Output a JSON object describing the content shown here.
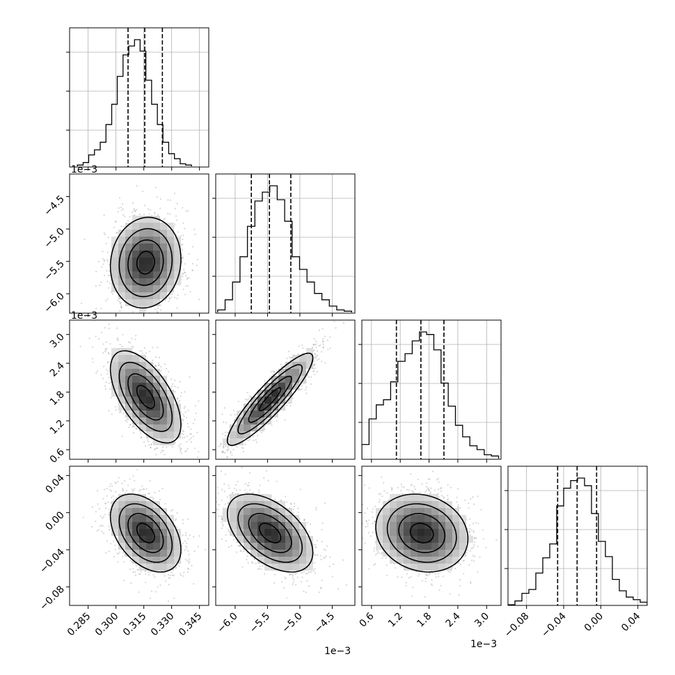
{
  "figure": {
    "type": "corner-plot"
  },
  "chart_data": {
    "type": "corner",
    "parameters": [
      {
        "index": 0,
        "range": [
          0.275,
          0.35
        ],
        "ticks": [
          0.285,
          0.3,
          0.315,
          0.33,
          0.345
        ],
        "tick_labels": [
          "0.285",
          "0.300",
          "0.315",
          "0.330",
          "0.345"
        ],
        "offset_text": "",
        "quantiles": [
          0.3065,
          0.3155,
          0.325
        ],
        "histogram": {
          "bin_edges": [
            0.2792,
            0.2823,
            0.2853,
            0.2884,
            0.2915,
            0.2946,
            0.2977,
            0.3007,
            0.3038,
            0.3069,
            0.31,
            0.313,
            0.3161,
            0.3192,
            0.3223,
            0.3253,
            0.3284,
            0.3315,
            0.3346,
            0.3376,
            0.3407
          ],
          "counts": [
            0.01,
            0.03,
            0.09,
            0.13,
            0.19,
            0.33,
            0.49,
            0.71,
            0.88,
            0.95,
            1.0,
            0.91,
            0.68,
            0.49,
            0.33,
            0.19,
            0.1,
            0.06,
            0.02,
            0.01
          ]
        }
      },
      {
        "index": 1,
        "range": [
          -6.3,
          -4.15
        ],
        "ticks": [
          -6.0,
          -5.5,
          -5.0,
          -4.5
        ],
        "tick_labels": [
          "−6.0",
          "−5.5",
          "−5.0",
          "−4.5"
        ],
        "offset_text": "1e−3",
        "quantiles": [
          -5.75,
          -5.47,
          -5.14
        ],
        "histogram": {
          "bin_edges": [
            -6.27,
            -6.155,
            -6.04,
            -5.925,
            -5.81,
            -5.695,
            -5.58,
            -5.465,
            -5.35,
            -5.235,
            -5.12,
            -5.005,
            -4.89,
            -4.775,
            -4.66,
            -4.545,
            -4.43,
            -4.315,
            -4.2
          ],
          "counts": [
            0.02,
            0.1,
            0.24,
            0.44,
            0.68,
            0.88,
            0.95,
            1.0,
            0.89,
            0.72,
            0.44,
            0.34,
            0.24,
            0.15,
            0.1,
            0.05,
            0.02,
            0.01
          ]
        }
      },
      {
        "index": 2,
        "range": [
          0.4,
          3.3
        ],
        "ticks": [
          0.6,
          1.2,
          1.8,
          2.4,
          3.0
        ],
        "tick_labels": [
          "0.6",
          "1.2",
          "1.8",
          "2.4",
          "3.0"
        ],
        "offset_text": "1e−3",
        "quantiles": [
          1.12,
          1.63,
          2.11
        ],
        "histogram": {
          "bin_edges": [
            0.4,
            0.55,
            0.7,
            0.85,
            1.0,
            1.15,
            1.3,
            1.45,
            1.6,
            1.75,
            1.9,
            2.05,
            2.2,
            2.35,
            2.5,
            2.65,
            2.8,
            2.95,
            3.1,
            3.25
          ],
          "counts": [
            0.11,
            0.31,
            0.42,
            0.46,
            0.6,
            0.76,
            0.82,
            0.92,
            0.99,
            0.97,
            0.85,
            0.59,
            0.41,
            0.26,
            0.17,
            0.1,
            0.07,
            0.03,
            0.02
          ]
        }
      },
      {
        "index": 3,
        "range": [
          -0.1,
          0.05
        ],
        "ticks": [
          -0.08,
          -0.04,
          0.0,
          0.04
        ],
        "tick_labels": [
          "−0.08",
          "−0.04",
          "0.00",
          "0.04"
        ],
        "offset_text": "",
        "quantiles": [
          -0.0465,
          -0.0255,
          -0.0045
        ],
        "histogram": {
          "bin_edges": [
            -0.1,
            -0.0925,
            -0.085,
            -0.0775,
            -0.07,
            -0.0625,
            -0.055,
            -0.0475,
            -0.04,
            -0.0325,
            -0.025,
            -0.0175,
            -0.01,
            -0.0025,
            0.005,
            0.0125,
            0.02,
            0.0275,
            0.035,
            0.0425,
            0.05
          ],
          "counts": [
            0.0,
            0.03,
            0.09,
            0.12,
            0.25,
            0.37,
            0.48,
            0.78,
            0.92,
            0.98,
            1.0,
            0.94,
            0.72,
            0.5,
            0.38,
            0.2,
            0.11,
            0.06,
            0.04,
            0.02
          ]
        }
      }
    ],
    "pairs": [
      {
        "x": 0,
        "y": 1,
        "center": [
          0.316,
          -5.52
        ],
        "sigma": [
          0.0095,
          0.35
        ],
        "corr": 0.08,
        "seed": 11
      },
      {
        "x": 0,
        "y": 2,
        "center": [
          0.316,
          1.7
        ],
        "sigma": [
          0.0095,
          0.48
        ],
        "corr": -0.6,
        "seed": 23
      },
      {
        "x": 0,
        "y": 3,
        "center": [
          0.316,
          -0.022
        ],
        "sigma": [
          0.0095,
          0.021
        ],
        "corr": -0.42,
        "seed": 37
      },
      {
        "x": 1,
        "y": 2,
        "center": [
          -5.46,
          1.65
        ],
        "sigma": [
          0.33,
          0.48
        ],
        "corr": 0.9,
        "seed": 41
      },
      {
        "x": 1,
        "y": 3,
        "center": [
          -5.46,
          -0.022
        ],
        "sigma": [
          0.33,
          0.021
        ],
        "corr": -0.5,
        "seed": 53
      },
      {
        "x": 2,
        "y": 3,
        "center": [
          1.65,
          -0.022
        ],
        "sigma": [
          0.48,
          0.021
        ],
        "corr": -0.15,
        "seed": 67
      }
    ],
    "contour_levels_sigma": [
      0.5,
      1.0,
      1.5,
      2.0
    ],
    "grid": true
  }
}
